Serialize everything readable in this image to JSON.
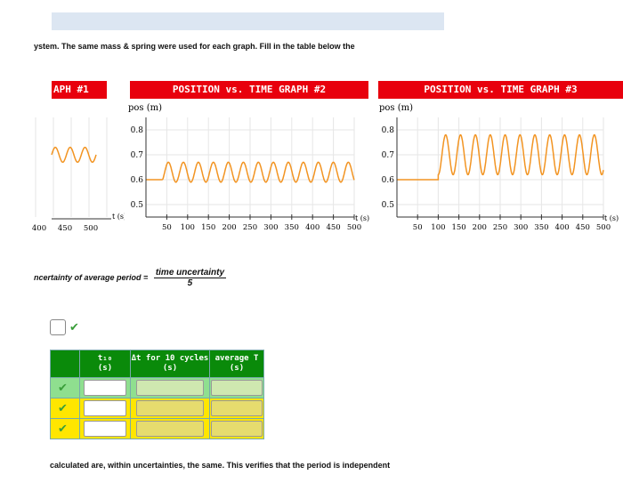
{
  "intro_text": "ystem. The same mass & spring were used for each graph. Fill in the table below the",
  "graph1_title": "APH #1",
  "graph2_title": "POSITION vs. TIME GRAPH #2",
  "graph3_title": "POSITION vs. TIME GRAPH #3",
  "formula": {
    "left": "ncertainty of average period =",
    "numerator": "time uncertainty",
    "denominator": "5"
  },
  "check_mark": "✔",
  "table": {
    "headers": [
      {
        "line1": "t₁₀",
        "line2": "(s)"
      },
      {
        "line1": "Δt for 10 cycles",
        "line2": "(s)"
      },
      {
        "line1": "average T",
        "line2": "(s)"
      }
    ],
    "row_colors": [
      "#8fdf8f",
      "#ffe600",
      "#ffe600"
    ],
    "box_fill": [
      "#cfe8b0",
      "#e6dc6e",
      "#e6dc6e"
    ]
  },
  "footer_text": "calculated are, within uncertainties, the same. This verifies that the period is independent",
  "colors": {
    "series": "#f29422",
    "title_red": "#e8000d",
    "header_green": "#0a8a0a"
  },
  "chart_data": [
    {
      "type": "line",
      "title": "APH #1",
      "xlabel": "t (s)",
      "ylabel": "",
      "x_ticks": [
        "400",
        "450",
        "500"
      ],
      "y_ticks": [],
      "series": [
        {
          "amplitude": 0.03,
          "center": 0.7,
          "cycles_visible": 3
        }
      ]
    },
    {
      "type": "line",
      "title": "POSITION vs. TIME GRAPH #2",
      "xlabel": "t (s)",
      "ylabel": "pos (m)",
      "xlim": [
        0,
        500
      ],
      "ylim": [
        0.45,
        0.85
      ],
      "x_ticks": [
        "50",
        "100",
        "150",
        "200",
        "250",
        "300",
        "350",
        "400",
        "450",
        "500"
      ],
      "y_ticks": [
        "0.8",
        "0.7",
        "0.6",
        "0.5"
      ],
      "series": [
        {
          "start_t": 0,
          "flat_until": 40,
          "baseline": 0.6,
          "center": 0.63,
          "amplitude": 0.04,
          "period": 36
        }
      ]
    },
    {
      "type": "line",
      "title": "POSITION vs. TIME GRAPH #3",
      "xlabel": "t (s)",
      "ylabel": "pos (m)",
      "xlim": [
        0,
        500
      ],
      "ylim": [
        0.45,
        0.85
      ],
      "x_ticks": [
        "50",
        "100",
        "150",
        "200",
        "250",
        "300",
        "350",
        "400",
        "450",
        "500"
      ],
      "y_ticks": [
        "0.8",
        "0.7",
        "0.6",
        "0.5"
      ],
      "series": [
        {
          "start_t": 0,
          "flat_until": 100,
          "baseline": 0.6,
          "center": 0.7,
          "amplitude": 0.08,
          "period": 36
        }
      ]
    }
  ]
}
